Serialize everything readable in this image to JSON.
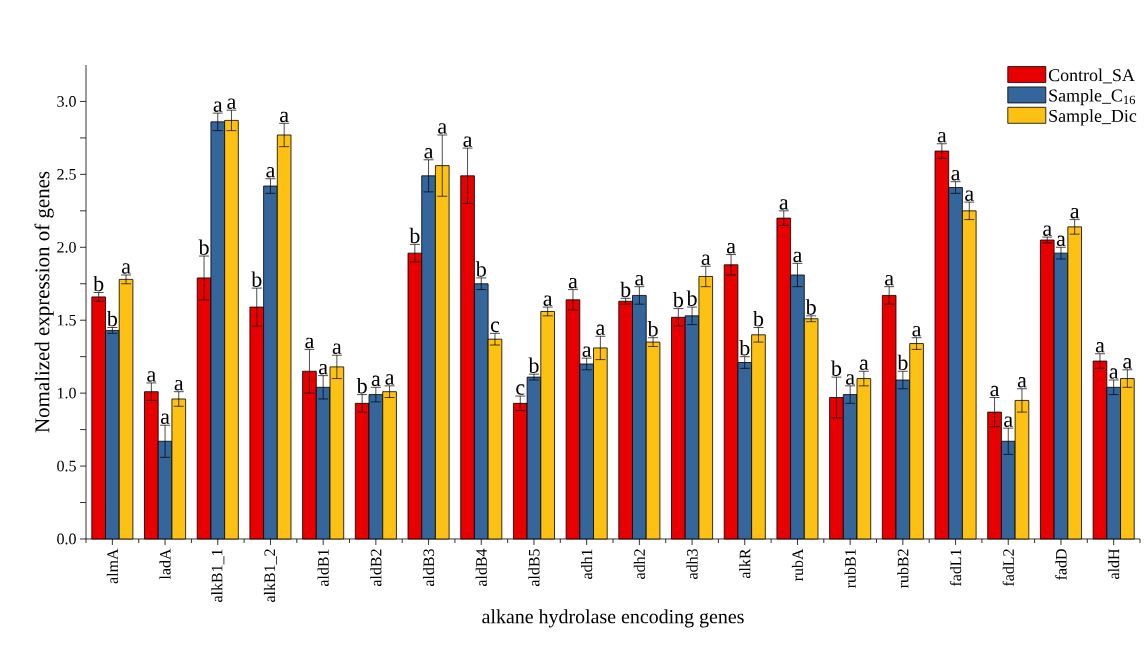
{
  "chart_data": {
    "type": "bar",
    "xlabel": "alkane hydrolase encoding genes",
    "ylabel": "Nomalized expression of genes",
    "categories": [
      "almA",
      "ladA",
      "alkB1_1",
      "alkB1_2",
      "aldB1",
      "aldB2",
      "aldB3",
      "aldB4",
      "aldB5",
      "adh1",
      "adh2",
      "adh3",
      "alkR",
      "rubA",
      "rubB1",
      "rubB2",
      "fadL1",
      "fadL2",
      "fadD",
      "aldH"
    ],
    "ylim": [
      0,
      3.25
    ],
    "yticks": [
      {
        "value": 0,
        "label": "0.0"
      },
      {
        "value": 0.25,
        "label": null
      },
      {
        "value": 0.5,
        "label": "0.5"
      },
      {
        "value": 0.75,
        "label": null
      },
      {
        "value": 1,
        "label": "1.0"
      },
      {
        "value": 1.25,
        "label": null
      },
      {
        "value": 1.5,
        "label": "1.5"
      },
      {
        "value": 1.75,
        "label": null
      },
      {
        "value": 2,
        "label": "2.0"
      },
      {
        "value": 2.25,
        "label": null
      },
      {
        "value": 2.5,
        "label": "2.5"
      },
      {
        "value": 2.75,
        "label": null
      },
      {
        "value": 3,
        "label": "3.0"
      }
    ],
    "legend": "top right",
    "series": [
      {
        "name": "Control_SA",
        "color": "#e80000",
        "values": [
          1.66,
          1.01,
          1.79,
          1.59,
          1.15,
          0.93,
          1.96,
          2.49,
          0.93,
          1.64,
          1.63,
          1.52,
          1.88,
          2.2,
          0.97,
          1.67,
          2.66,
          0.87,
          2.05,
          1.22
        ],
        "errors": [
          0.03,
          0.06,
          0.15,
          0.13,
          0.15,
          0.06,
          0.06,
          0.19,
          0.05,
          0.07,
          0.02,
          0.06,
          0.07,
          0.05,
          0.14,
          0.06,
          0.05,
          0.1,
          0.02,
          0.05
        ],
        "value_labels": [
          "b",
          "a",
          "b",
          "b",
          "a",
          "b",
          "b",
          "a",
          "c",
          "a",
          "b",
          "b",
          "a",
          "a",
          "b",
          "a",
          "a",
          "a",
          "a",
          "a"
        ]
      },
      {
        "name": "Sample_C$_{16}$",
        "color": "#34659b",
        "values": [
          1.43,
          0.67,
          2.86,
          2.42,
          1.04,
          0.99,
          2.49,
          1.75,
          1.11,
          1.2,
          1.67,
          1.53,
          1.21,
          1.81,
          0.99,
          1.09,
          2.41,
          0.67,
          1.96,
          1.04
        ],
        "errors": [
          0.02,
          0.11,
          0.06,
          0.05,
          0.08,
          0.05,
          0.11,
          0.04,
          0.02,
          0.04,
          0.06,
          0.06,
          0.04,
          0.08,
          0.06,
          0.06,
          0.04,
          0.09,
          0.04,
          0.05
        ],
        "value_labels": [
          "b",
          "a",
          "a",
          "a",
          "a",
          "a",
          "a",
          "b",
          "b",
          "a",
          "a",
          "b",
          "b",
          "a",
          "a",
          "b",
          "a",
          "a",
          "a",
          "a"
        ]
      },
      {
        "name": "Sample_Dic",
        "color": "#fdc114",
        "values": [
          1.78,
          0.96,
          2.87,
          2.77,
          1.18,
          1.01,
          2.56,
          1.37,
          1.56,
          1.31,
          1.35,
          1.8,
          1.4,
          1.51,
          1.1,
          1.34,
          2.25,
          0.95,
          2.14,
          1.1
        ],
        "errors": [
          0.03,
          0.05,
          0.07,
          0.08,
          0.08,
          0.04,
          0.21,
          0.04,
          0.03,
          0.08,
          0.03,
          0.07,
          0.05,
          0.02,
          0.05,
          0.04,
          0.06,
          0.08,
          0.05,
          0.06
        ],
        "value_labels": [
          "a",
          "a",
          "a",
          "a",
          "a",
          "a",
          "a",
          "c",
          "a",
          "a",
          "b",
          "a",
          "b",
          "b",
          "a",
          "a",
          "a",
          "a",
          "a",
          "a"
        ]
      }
    ]
  }
}
